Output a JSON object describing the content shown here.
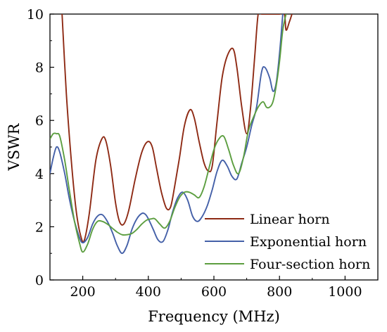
{
  "chart_data": {
    "type": "line",
    "title": "",
    "xlabel": "Frequency (MHz)",
    "ylabel": "VSWR",
    "xlim": [
      100,
      1100
    ],
    "ylim": [
      0,
      10
    ],
    "xticks": [
      200,
      400,
      600,
      800,
      1000
    ],
    "yticks": [
      0,
      2,
      4,
      6,
      8,
      10
    ],
    "grid": false,
    "legend": "bottom-right",
    "series": [
      {
        "name": "Linear horn",
        "color": "#8e2a14",
        "x": [
          137,
          150,
          165,
          180,
          195,
          205,
          220,
          240,
          258,
          270,
          285,
          300,
          312,
          325,
          340,
          360,
          380,
          398,
          412,
          425,
          440,
          455,
          468,
          480,
          495,
          510,
          527,
          540,
          555,
          570,
          583,
          595,
          610,
          625,
          640,
          658,
          670,
          685,
          700,
          712,
          725,
          735,
          745,
          760,
          780,
          800,
          815,
          820,
          830,
          838
        ],
        "y": [
          10.0,
          7.0,
          4.5,
          2.6,
          1.6,
          1.5,
          2.5,
          4.5,
          5.3,
          5.25,
          4.3,
          2.9,
          2.2,
          2.1,
          2.6,
          3.8,
          4.8,
          5.2,
          5.0,
          4.2,
          3.3,
          2.7,
          2.75,
          3.5,
          4.6,
          5.8,
          6.4,
          6.1,
          5.2,
          4.4,
          4.1,
          4.3,
          6.0,
          7.6,
          8.4,
          8.7,
          8.0,
          6.5,
          5.5,
          6.5,
          8.5,
          10.0,
          10.0,
          10.0,
          10.0,
          10.0,
          10.0,
          9.4,
          9.7,
          10.0
        ]
      },
      {
        "name": "Exponential horn",
        "color": "#4460a8",
        "x": [
          100,
          110,
          120,
          130,
          145,
          160,
          175,
          190,
          200,
          215,
          230,
          245,
          260,
          275,
          290,
          305,
          320,
          335,
          350,
          365,
          380,
          390,
          400,
          415,
          430,
          445,
          460,
          475,
          490,
          505,
          520,
          535,
          550,
          565,
          580,
          595,
          610,
          625,
          640,
          655,
          670,
          685,
          700,
          715,
          730,
          745,
          755,
          770,
          780,
          790,
          800,
          810
        ],
        "y": [
          4.0,
          4.6,
          5.0,
          4.8,
          4.0,
          3.0,
          2.2,
          1.6,
          1.4,
          1.6,
          2.1,
          2.4,
          2.45,
          2.2,
          1.8,
          1.3,
          1.0,
          1.3,
          1.9,
          2.3,
          2.5,
          2.48,
          2.3,
          1.9,
          1.5,
          1.45,
          1.9,
          2.6,
          3.1,
          3.3,
          3.0,
          2.4,
          2.2,
          2.4,
          2.8,
          3.4,
          4.1,
          4.5,
          4.3,
          3.9,
          3.8,
          4.4,
          5.0,
          5.8,
          6.5,
          7.8,
          8.0,
          7.6,
          7.1,
          7.4,
          8.5,
          10.0
        ]
      },
      {
        "name": "Four-section horn",
        "color": "#5c9e40",
        "x": [
          100,
          110,
          120,
          130,
          145,
          160,
          175,
          190,
          200,
          215,
          230,
          245,
          260,
          275,
          290,
          305,
          320,
          335,
          350,
          365,
          380,
          395,
          410,
          420,
          435,
          450,
          465,
          480,
          495,
          510,
          525,
          540,
          555,
          570,
          585,
          600,
          615,
          630,
          645,
          660,
          675,
          690,
          705,
          720,
          735,
          750,
          760,
          770,
          780,
          790,
          800,
          810,
          820
        ],
        "y": [
          5.3,
          5.5,
          5.5,
          5.4,
          4.5,
          3.3,
          2.2,
          1.4,
          1.05,
          1.35,
          1.9,
          2.2,
          2.2,
          2.1,
          1.95,
          1.8,
          1.7,
          1.7,
          1.75,
          1.9,
          2.1,
          2.25,
          2.3,
          2.3,
          2.1,
          1.95,
          2.2,
          2.7,
          3.1,
          3.3,
          3.3,
          3.2,
          3.1,
          3.5,
          4.2,
          4.9,
          5.3,
          5.4,
          4.9,
          4.3,
          4.0,
          4.6,
          5.6,
          6.1,
          6.5,
          6.7,
          6.5,
          6.5,
          6.7,
          7.3,
          8.2,
          9.4,
          10.0
        ]
      }
    ]
  }
}
